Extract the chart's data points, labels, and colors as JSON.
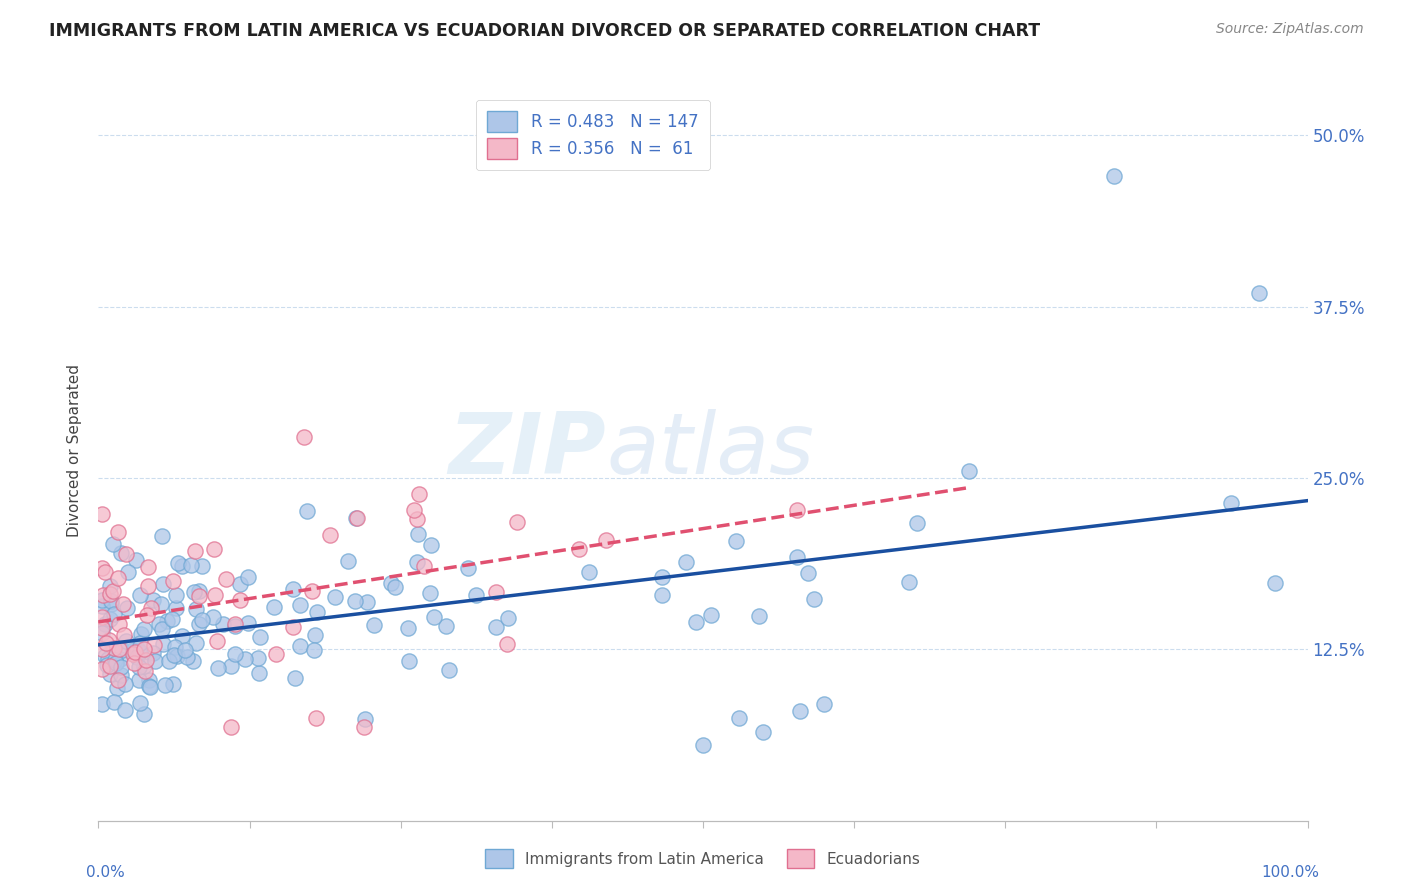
{
  "title": "IMMIGRANTS FROM LATIN AMERICA VS ECUADORIAN DIVORCED OR SEPARATED CORRELATION CHART",
  "source_text": "Source: ZipAtlas.com",
  "ylabel": "Divorced or Separated",
  "ytick_vals": [
    0.0,
    0.125,
    0.25,
    0.375,
    0.5
  ],
  "ytick_labels": [
    "",
    "12.5%",
    "25.0%",
    "37.5%",
    "50.0%"
  ],
  "legend_r1": "R = 0.483",
  "legend_n1": "N = 147",
  "legend_r2": "R = 0.356",
  "legend_n2": "N =  61",
  "color_blue_face": "#AEC6E8",
  "color_blue_edge": "#6FA8D4",
  "color_pink_face": "#F4B8C8",
  "color_pink_edge": "#E07090",
  "color_blue_line": "#1A4FA0",
  "color_pink_line": "#E05070",
  "watermark_zip": "ZIP",
  "watermark_atlas": "atlas",
  "grid_color": "#CCDDEE",
  "ylim_min": 0.04,
  "ylim_max": 0.54,
  "xlim_min": 0.0,
  "xlim_max": 1.0
}
